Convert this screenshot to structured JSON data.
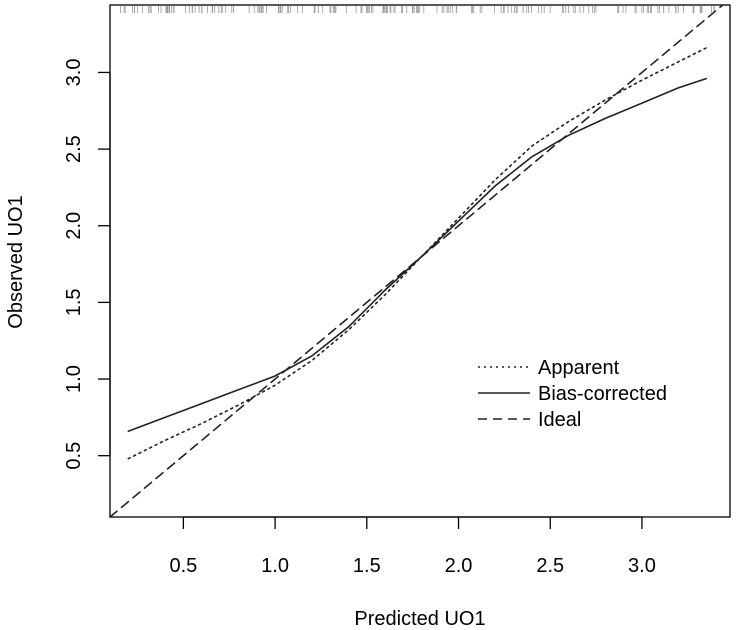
{
  "chart_data": {
    "type": "line",
    "title": "",
    "xlabel": "Predicted UO1",
    "ylabel": "Observed UO1",
    "xlim": [
      0.1,
      3.48
    ],
    "ylim": [
      0.1,
      3.44
    ],
    "x_ticks": [
      "0.5",
      "1.0",
      "1.5",
      "2.0",
      "2.5",
      "3.0"
    ],
    "y_ticks": [
      "0.5",
      "1.0",
      "1.5",
      "2.0",
      "2.5",
      "3.0"
    ],
    "grid": false,
    "legend_position": "bottom-right",
    "legend": [
      "Apparent",
      "Bias-corrected",
      "Ideal"
    ],
    "series": [
      {
        "name": "Apparent",
        "line_style": "dotted",
        "x": [
          0.2,
          0.4,
          0.6,
          0.8,
          1.0,
          1.2,
          1.4,
          1.6,
          1.8,
          2.0,
          2.2,
          2.4,
          2.6,
          2.8,
          3.0,
          3.2,
          3.35
        ],
        "y": [
          0.48,
          0.6,
          0.71,
          0.83,
          0.96,
          1.12,
          1.32,
          1.55,
          1.8,
          2.05,
          2.3,
          2.52,
          2.68,
          2.82,
          2.95,
          3.07,
          3.16
        ]
      },
      {
        "name": "Bias-corrected",
        "line_style": "solid",
        "x": [
          0.2,
          0.4,
          0.6,
          0.8,
          1.0,
          1.2,
          1.4,
          1.6,
          1.8,
          2.0,
          2.2,
          2.4,
          2.6,
          2.8,
          3.0,
          3.2,
          3.35
        ],
        "y": [
          0.66,
          0.75,
          0.84,
          0.93,
          1.02,
          1.15,
          1.34,
          1.58,
          1.8,
          2.03,
          2.26,
          2.45,
          2.59,
          2.7,
          2.8,
          2.9,
          2.96
        ]
      },
      {
        "name": "Ideal",
        "line_style": "dashed",
        "x": [
          0.1,
          3.44
        ],
        "y": [
          0.1,
          3.44
        ]
      }
    ]
  }
}
